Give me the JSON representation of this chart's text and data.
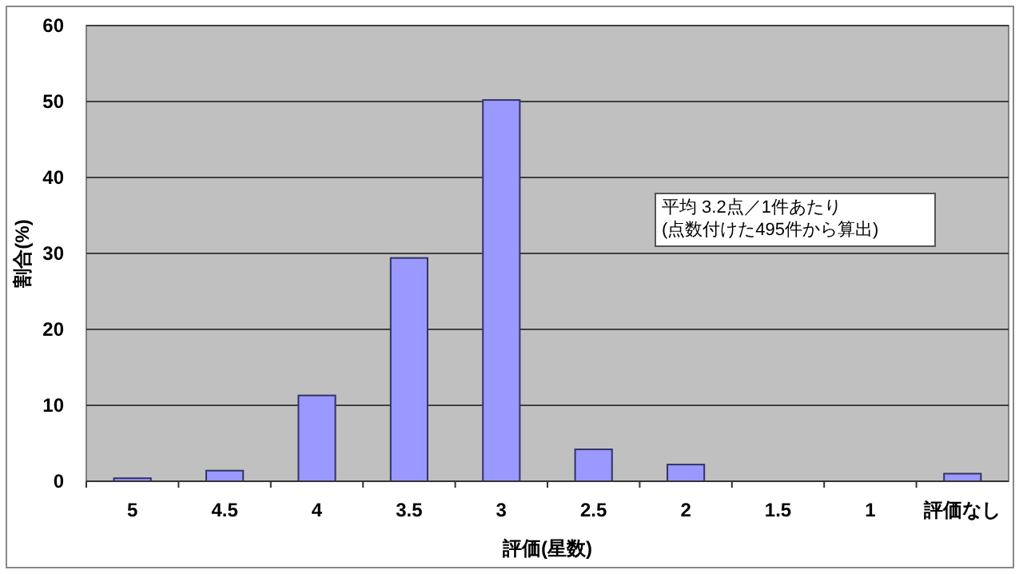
{
  "chart_data": {
    "type": "bar",
    "xlabel": "評価(星数)",
    "ylabel": "割合(%)",
    "categories": [
      "5",
      "4.5",
      "4",
      "3.5",
      "3",
      "2.5",
      "2",
      "1.5",
      "1",
      "評価なし"
    ],
    "values": [
      0.4,
      1.4,
      11.3,
      29.4,
      50.2,
      4.2,
      2.2,
      0,
      0,
      1.0
    ],
    "color": "#9999ff",
    "ylim": [
      0,
      60
    ],
    "yticks": [
      0,
      10,
      20,
      30,
      40,
      50,
      60
    ],
    "grid": "y",
    "annotations": [
      "平均 3.2点／1件あたり\n(点数付けた495件から算出)"
    ]
  }
}
